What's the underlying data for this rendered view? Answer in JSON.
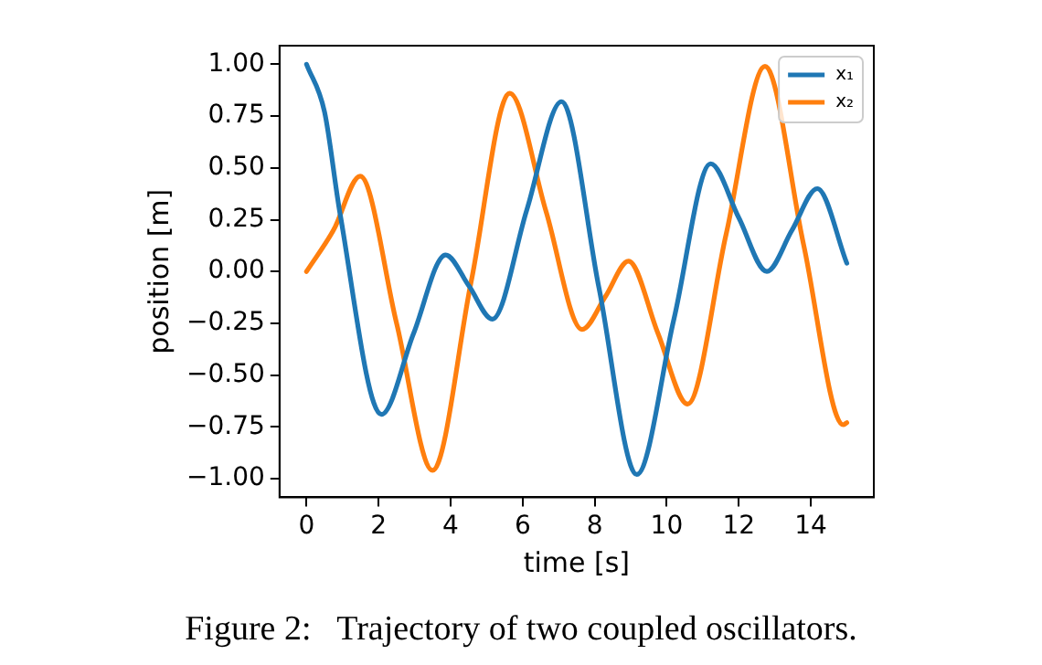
{
  "chart_data": {
    "type": "line",
    "xlabel": "time [s]",
    "ylabel": "position [m]",
    "annotations": [
      "Figure 2:   Trajectory of two coupled oscillators."
    ],
    "xlim": [
      -0.75,
      15.75
    ],
    "xticks": [
      0,
      2,
      4,
      6,
      8,
      10,
      12,
      14
    ],
    "ylim": [
      -1.09,
      1.09
    ],
    "yticks": [
      {
        "value": -1,
        "label": "−1.00"
      },
      {
        "value": -0.75,
        "label": "−0.75"
      },
      {
        "value": -0.5,
        "label": "−0.50"
      },
      {
        "value": -0.25,
        "label": "−0.25"
      },
      {
        "value": 0,
        "label": "0.00"
      },
      {
        "value": 0.25,
        "label": "0.25"
      },
      {
        "value": 0.5,
        "label": "0.50"
      },
      {
        "value": 0.75,
        "label": "0.75"
      },
      {
        "value": 1,
        "label": "1.00"
      }
    ],
    "grid": false,
    "legend": "top right",
    "marker": "none",
    "line_style": "solid",
    "series": [
      {
        "name": "x₁",
        "color": "#1f77b4",
        "x": [
          0,
          0.5,
          0.93,
          2.08,
          2.97,
          3.86,
          4.51,
          5.16,
          6.12,
          7.08,
          8.12,
          9.17,
          10.2,
          11.22,
          12.0,
          12.78,
          13.48,
          14.18,
          15
        ],
        "values": [
          1.0,
          0.77,
          0.28,
          -0.69,
          -0.3,
          0.08,
          -0.07,
          -0.23,
          0.3,
          0.82,
          -0.08,
          -0.98,
          -0.23,
          0.52,
          0.26,
          0.0,
          0.2,
          0.4,
          0.04
        ]
      },
      {
        "name": "x₂",
        "color": "#ff7f0e",
        "x": [
          0,
          0.75,
          1.49,
          2.5,
          3.5,
          4.57,
          5.64,
          6.65,
          7.65,
          8.3,
          8.94,
          9.76,
          10.58,
          11.65,
          12.73,
          13.8,
          14.9,
          15
        ],
        "values": [
          0.0,
          0.2,
          0.46,
          -0.25,
          -0.96,
          -0.05,
          0.86,
          0.29,
          -0.28,
          -0.12,
          0.05,
          -0.3,
          -0.64,
          0.18,
          0.99,
          0.13,
          -0.74,
          -0.73
        ]
      }
    ]
  }
}
